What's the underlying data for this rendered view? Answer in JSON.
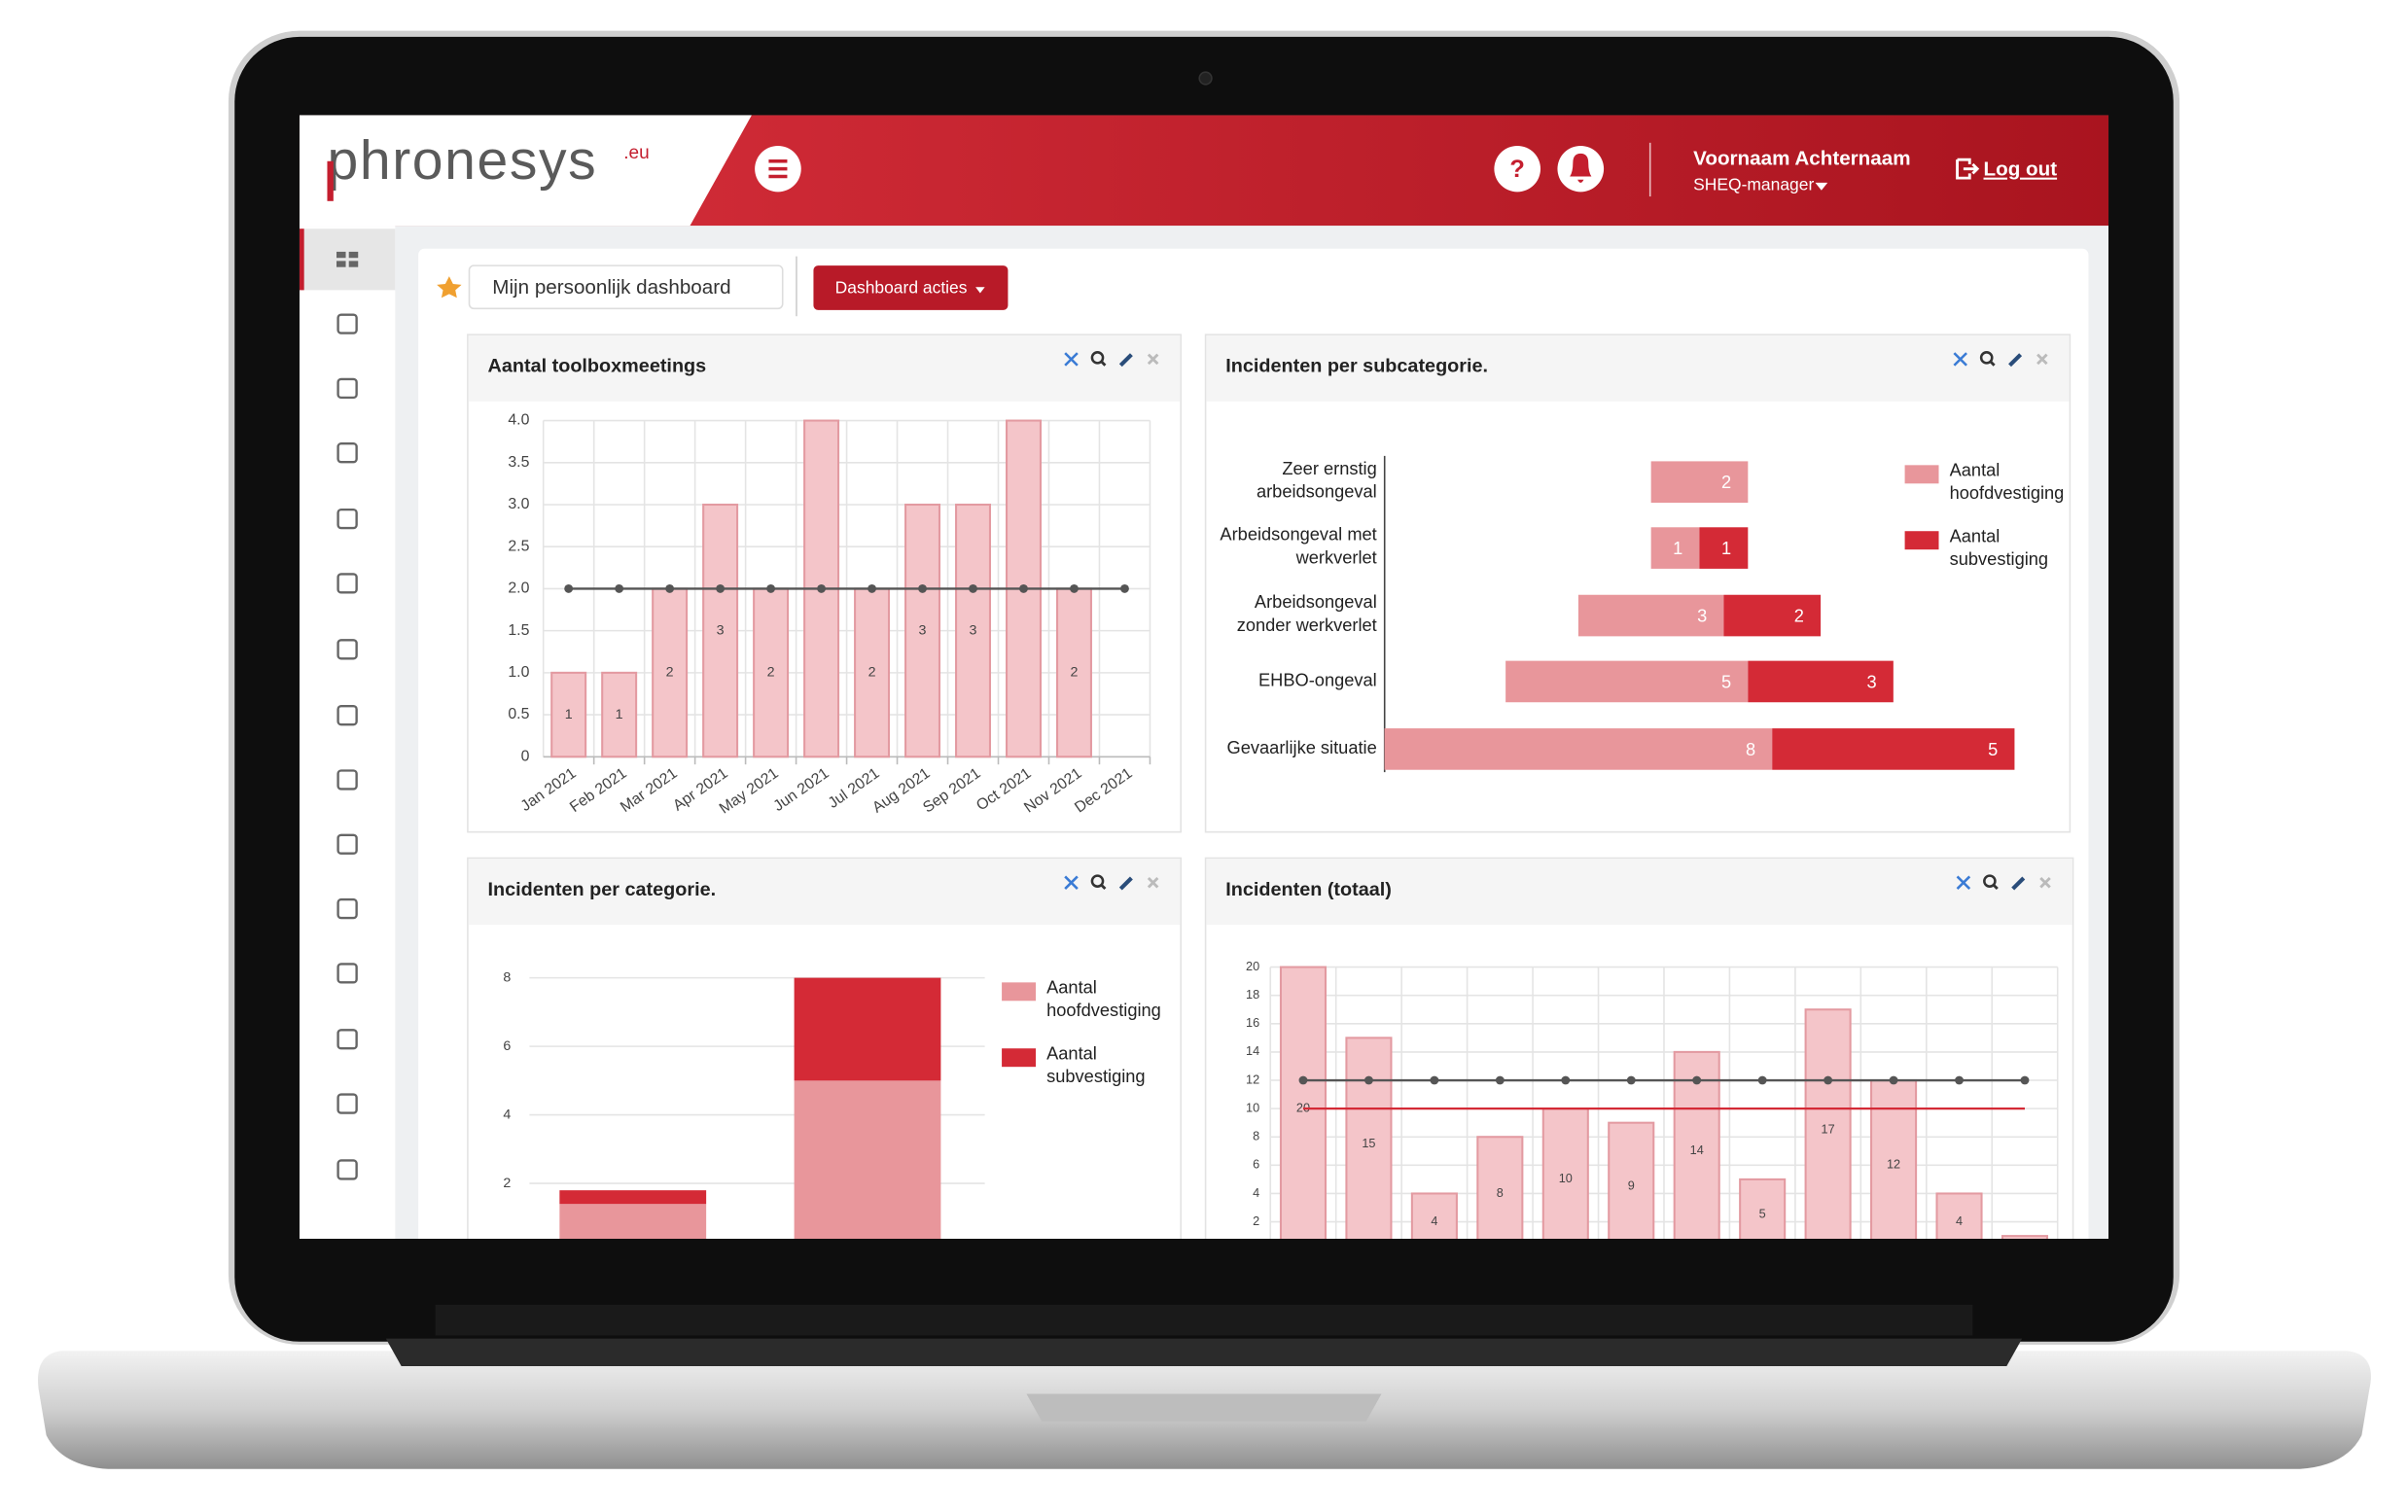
{
  "header": {
    "logo": "phronesys",
    "logo_suffix": ".eu",
    "help": "?",
    "user_name": "Voornaam Achternaam",
    "user_role": "SHEQ-manager",
    "logout": "Log out"
  },
  "toolbar": {
    "dashboard_name": "Mijn persoonlijk dashboard",
    "actions": "Dashboard acties"
  },
  "chart_data": [
    {
      "type": "bar",
      "title": "Aantal toolboxmeetings",
      "categories": [
        "Jan 2021",
        "Feb 2021",
        "Mar 2021",
        "Apr 2021",
        "May 2021",
        "Jun 2021",
        "Jul 2021",
        "Aug 2021",
        "Sep 2021",
        "Oct 2021",
        "Nov 2021",
        "Dec 2021"
      ],
      "series": [
        {
          "type": "bar",
          "color": "#f4c5c9",
          "border_color": "#e39aa1",
          "values": [
            1,
            1,
            2,
            3,
            2,
            4,
            2,
            3,
            3,
            4,
            2,
            null
          ],
          "value_labels": [
            "1",
            "1",
            "2",
            "3",
            "2",
            null,
            "2",
            "3",
            "3",
            null,
            "2",
            null
          ]
        },
        {
          "type": "line",
          "color": "#555555",
          "markers": true,
          "values": [
            2,
            2,
            2,
            2,
            2,
            2,
            2,
            2,
            2,
            2,
            2,
            2
          ]
        }
      ],
      "ylim": [
        0,
        4
      ],
      "yticks": [
        0,
        0.5,
        {
          "value": 1,
          "label": "1.0"
        },
        1.5,
        {
          "value": 2,
          "label": "2.0"
        },
        2.5,
        {
          "value": 3,
          "label": "3.0"
        },
        3.5,
        {
          "value": 4,
          "label": "4.0"
        }
      ],
      "grid": true
    },
    {
      "type": "bar",
      "orientation": "horizontal",
      "stacked": true,
      "bar_align": "center",
      "title": "Incidenten per subcategorie.",
      "categories": [
        "Zeer ernstig arbeidsongeval",
        "Arbeidsongeval met werkverlet",
        "Arbeidsongeval zonder werkverlet",
        "EHBO-ongeval",
        "Gevaarlijke situatie"
      ],
      "series": [
        {
          "name": "Aantal hoofdvestiging",
          "color": "#e8969b",
          "values": [
            2,
            1,
            3,
            5,
            8
          ]
        },
        {
          "name": "Aantal subvestiging",
          "color": "#d42a36",
          "values": [
            null,
            1,
            2,
            3,
            5
          ]
        }
      ],
      "legend": "right"
    },
    {
      "type": "bar",
      "stacked": true,
      "title": "Incidenten per categorie.",
      "categories": [
        null,
        null
      ],
      "series": [
        {
          "name": "Aantal hoofdvestiging",
          "color": "#e8969b",
          "values": [
            1.4,
            5
          ]
        },
        {
          "name": "Aantal subvestiging",
          "color": "#d42a36",
          "values": [
            0.4,
            3
          ]
        }
      ],
      "ylim": [
        0,
        8
      ],
      "yticks": [
        2,
        4,
        6,
        8
      ],
      "grid": true,
      "legend": "right"
    },
    {
      "type": "bar",
      "title": "Incidenten (totaal)",
      "categories": [
        null,
        null,
        null,
        null,
        null,
        null,
        null,
        null,
        null,
        null,
        null,
        null
      ],
      "series": [
        {
          "type": "bar",
          "color": "#f4c5c9",
          "border_color": "#e39aa1",
          "values": [
            20,
            15,
            4,
            8,
            10,
            9,
            14,
            5,
            17,
            12,
            4,
            1
          ],
          "value_labels": [
            "20",
            "15",
            "4",
            "8",
            "10",
            "9",
            "14",
            "5",
            "17",
            "12",
            "4",
            null
          ]
        },
        {
          "type": "line",
          "color": "#555555",
          "markers": true,
          "values": [
            12,
            12,
            12,
            12,
            12,
            12,
            12,
            12,
            12,
            12,
            12,
            12
          ]
        },
        {
          "type": "line",
          "color": "#d42a36",
          "markers": false,
          "values": [
            10,
            10,
            10,
            10,
            10,
            10,
            10,
            10,
            10,
            10,
            10,
            10
          ]
        }
      ],
      "ylim": [
        0,
        20
      ],
      "yticks": [
        2,
        4,
        6,
        8,
        10,
        12,
        14,
        16,
        18,
        20
      ],
      "grid": true
    }
  ]
}
